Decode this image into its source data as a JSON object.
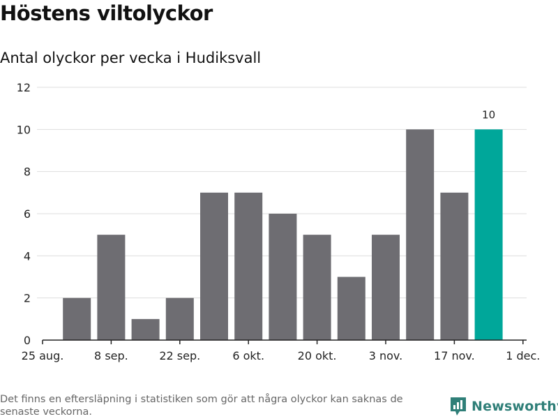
{
  "header": {
    "title": "Höstens viltolyckor",
    "subtitle": "Antal olyckor per vecka i Hudiksvall"
  },
  "footer": {
    "note": "Det finns en eftersläpning i statistiken som gör att några olyckor kan saknas de senaste veckorna.",
    "brand": "Newsworthy"
  },
  "colors": {
    "bar": "#6e6d72",
    "highlight": "#00a79a",
    "grid": "#dddddd",
    "brand": "#2f7f78"
  },
  "chart_data": {
    "type": "bar",
    "title": "Höstens viltolyckor",
    "subtitle": "Antal olyckor per vecka i Hudiksvall",
    "xlabel": "",
    "ylabel": "",
    "x_ticks": [
      "25 aug.",
      "8 sep.",
      "22 sep.",
      "6 okt.",
      "20 okt.",
      "3 nov.",
      "17 nov.",
      "1 dec."
    ],
    "categories": [
      "1 sep.",
      "8 sep.",
      "15 sep.",
      "22 sep.",
      "29 sep.",
      "6 okt.",
      "13 okt.",
      "20 okt.",
      "27 okt.",
      "3 nov.",
      "10 nov.",
      "17 nov.",
      "24 nov."
    ],
    "values": [
      2,
      5,
      1,
      2,
      7,
      7,
      6,
      5,
      3,
      5,
      10,
      7,
      10
    ],
    "highlight_index": 12,
    "highlight_label": "10",
    "y_ticks": [
      "0",
      "2",
      "4",
      "6",
      "8",
      "10",
      "12"
    ],
    "ylim": [
      0,
      12
    ],
    "grid": true
  }
}
